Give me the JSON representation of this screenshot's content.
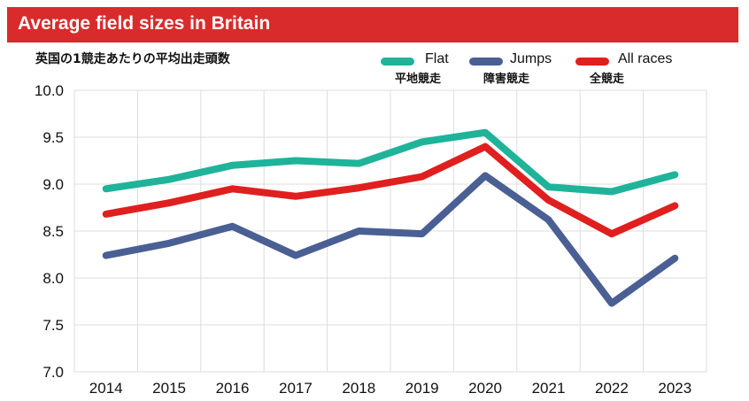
{
  "header": {
    "title": "Average field sizes in Britain",
    "subtitle": "英国の1競走あたりの平均出走頭数"
  },
  "colors": {
    "header_bg": "#d92b2b",
    "flat": "#1fb39a",
    "jumps": "#4a5f93",
    "all": "#e01f1f",
    "grid": "#dddddd"
  },
  "chart_data": {
    "type": "line",
    "title": "Average field sizes in Britain",
    "subtitle": "英国の1競走あたりの平均出走頭数",
    "xlabel": "",
    "ylabel": "",
    "x": [
      "2014",
      "2015",
      "2016",
      "2017",
      "2018",
      "2019",
      "2020",
      "2021",
      "2022",
      "2023"
    ],
    "ylim": [
      7.0,
      10.0
    ],
    "yticks": [
      "7.0",
      "7.5",
      "8.0",
      "8.5",
      "9.0",
      "9.5",
      "10.0"
    ],
    "ytick_values": [
      7.0,
      7.5,
      8.0,
      8.5,
      9.0,
      9.5,
      10.0
    ],
    "grid": true,
    "legend_position": "top-right",
    "series": [
      {
        "key": "flat",
        "name": "Flat",
        "name_jp": "平地競走",
        "color": "#1fb39a",
        "values": [
          8.95,
          9.05,
          9.2,
          9.25,
          9.22,
          9.45,
          9.55,
          8.97,
          8.92,
          9.1
        ]
      },
      {
        "key": "jumps",
        "name": "Jumps",
        "name_jp": "障害競走",
        "color": "#4a5f93",
        "values": [
          8.24,
          8.37,
          8.55,
          8.24,
          8.5,
          8.47,
          9.09,
          8.62,
          7.73,
          8.21
        ]
      },
      {
        "key": "all",
        "name": "All races",
        "name_jp": "全競走",
        "color": "#e01f1f",
        "values": [
          8.68,
          8.8,
          8.95,
          8.87,
          8.96,
          9.08,
          9.4,
          8.83,
          8.47,
          8.77
        ]
      }
    ]
  }
}
